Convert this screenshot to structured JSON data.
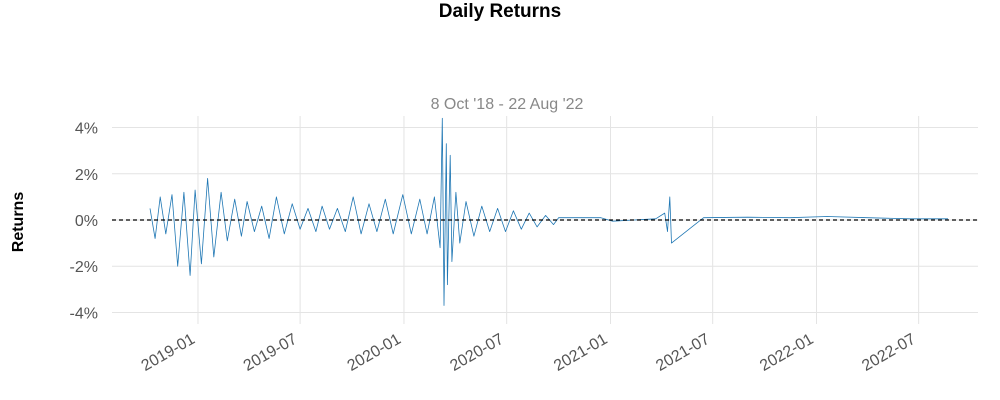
{
  "title": "Daily Returns",
  "chart_data": {
    "type": "line",
    "title": "Daily Returns",
    "subtitle": "8 Oct '18 - 22 Aug '22",
    "ylabel": "Returns",
    "xlabel": "",
    "x_range": [
      "2018-10-08",
      "2022-08-22"
    ],
    "ylim": [
      -4.5,
      4.5
    ],
    "grid": true,
    "baseline": 0,
    "line_color": "#1f77b4",
    "x_ticks": [
      "2019-01",
      "2019-07",
      "2020-01",
      "2020-07",
      "2021-01",
      "2021-07",
      "2022-01",
      "2022-07"
    ],
    "y_ticks": [
      {
        "value": 4,
        "label": "4%"
      },
      {
        "value": 2,
        "label": "2%"
      },
      {
        "value": 0,
        "label": "0%"
      },
      {
        "value": -2,
        "label": "-2%"
      },
      {
        "value": -4,
        "label": "-4%"
      }
    ],
    "series": [
      {
        "x": [
          "2018-10-08",
          "2018-10-17",
          "2018-10-26",
          "2018-11-05",
          "2018-11-16",
          "2018-11-26",
          "2018-12-07",
          "2018-12-18",
          "2018-12-27",
          "2019-01-07",
          "2019-01-18",
          "2019-01-29",
          "2019-02-11",
          "2019-02-22",
          "2019-03-07",
          "2019-03-19",
          "2019-03-29",
          "2019-04-11",
          "2019-04-24",
          "2019-05-07",
          "2019-05-20",
          "2019-06-03",
          "2019-06-17",
          "2019-07-01",
          "2019-07-15",
          "2019-07-29",
          "2019-08-09",
          "2019-08-22",
          "2019-09-05",
          "2019-09-19",
          "2019-10-03",
          "2019-10-17",
          "2019-10-31",
          "2019-11-14",
          "2019-11-29",
          "2019-12-13",
          "2019-12-30",
          "2020-01-14",
          "2020-01-29",
          "2020-02-11",
          "2020-02-24",
          "2020-03-05",
          "2020-03-09",
          "2020-03-12",
          "2020-03-16",
          "2020-03-18",
          "2020-03-23",
          "2020-03-26",
          "2020-04-02",
          "2020-04-09",
          "2020-04-20",
          "2020-05-04",
          "2020-05-18",
          "2020-06-01",
          "2020-06-15",
          "2020-06-29",
          "2020-07-13",
          "2020-07-27",
          "2020-08-10",
          "2020-08-24",
          "2020-09-08",
          "2020-09-22",
          "2020-10-01",
          "2020-12-15",
          "2021-01-05",
          "2021-03-22",
          "2021-04-07",
          "2021-04-12",
          "2021-04-16",
          "2021-04-19",
          "2021-06-15",
          "2021-09-01",
          "2021-11-15",
          "2022-01-20",
          "2022-04-01",
          "2022-06-15",
          "2022-08-22"
        ],
        "y": [
          0.5,
          -0.8,
          1.0,
          -0.6,
          1.1,
          -2.0,
          1.2,
          -2.4,
          1.3,
          -1.9,
          1.8,
          -1.6,
          1.2,
          -0.9,
          0.9,
          -0.7,
          0.8,
          -0.5,
          0.6,
          -0.8,
          1.0,
          -0.6,
          0.7,
          -0.4,
          0.5,
          -0.5,
          0.6,
          -0.4,
          0.5,
          -0.5,
          1.0,
          -0.6,
          0.7,
          -0.5,
          0.9,
          -0.6,
          1.1,
          -0.6,
          0.9,
          -0.6,
          1.0,
          -1.2,
          4.4,
          -3.7,
          3.3,
          -2.8,
          2.8,
          -1.8,
          1.2,
          -1.0,
          0.8,
          -0.7,
          0.6,
          -0.5,
          0.5,
          -0.5,
          0.4,
          -0.4,
          0.3,
          -0.3,
          0.2,
          -0.2,
          0.1,
          0.1,
          -0.05,
          0.05,
          0.3,
          -0.5,
          1.0,
          -1.0,
          0.1,
          0.12,
          0.1,
          0.15,
          0.1,
          0.05,
          0.05
        ]
      }
    ]
  }
}
